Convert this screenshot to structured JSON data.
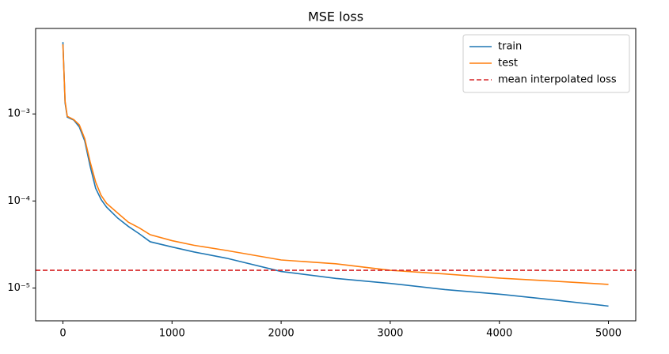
{
  "chart_data": {
    "type": "line",
    "title": "MSE loss",
    "x": [
      0,
      20,
      40,
      100,
      150,
      200,
      250,
      300,
      350,
      400,
      500,
      600,
      700,
      800,
      1000,
      1200,
      1500,
      2000,
      2500,
      3000,
      3500,
      4000,
      4500,
      5000
    ],
    "series": [
      {
        "name": "train",
        "color": "#1f77b4",
        "values": [
          0.0067,
          0.00134,
          0.00092,
          0.00085,
          0.00071,
          0.00049,
          0.00025,
          0.00014,
          0.000104,
          8.5e-05,
          6.4e-05,
          5.1e-05,
          4.2e-05,
          3.4e-05,
          2.96e-05,
          2.6e-05,
          2.2e-05,
          1.55e-05,
          1.29e-05,
          1.13e-05,
          9.6e-06,
          8.5e-06,
          7.3e-06,
          6.2e-06
        ]
      },
      {
        "name": "test",
        "color": "#ff7f0e",
        "values": [
          0.0063,
          0.0014,
          0.00094,
          0.00086,
          0.00075,
          0.00052,
          0.00028,
          0.000165,
          0.000116,
          9.4e-05,
          7.3e-05,
          5.7e-05,
          4.9e-05,
          4.1e-05,
          3.5e-05,
          3.1e-05,
          2.7e-05,
          2.1e-05,
          1.9e-05,
          1.6e-05,
          1.45e-05,
          1.3e-05,
          1.2e-05,
          1.1e-05
        ]
      }
    ],
    "hlines": [
      {
        "name": "mean interpolated loss",
        "color": "#d62728",
        "value": 1.6e-05,
        "style": "dashed"
      }
    ],
    "xlim": [
      -250,
      5250
    ],
    "xticks": [
      0,
      1000,
      2000,
      3000,
      4000,
      5000
    ],
    "ylim": [
      4.2e-06,
      0.0096
    ],
    "log_y": true,
    "yticks": [
      {
        "value": 1e-05,
        "label": "10⁻⁵"
      },
      {
        "value": 0.0001,
        "label": "10⁻⁴"
      },
      {
        "value": 0.001,
        "label": "10⁻³"
      }
    ],
    "grid": false,
    "legend": "upper right"
  }
}
